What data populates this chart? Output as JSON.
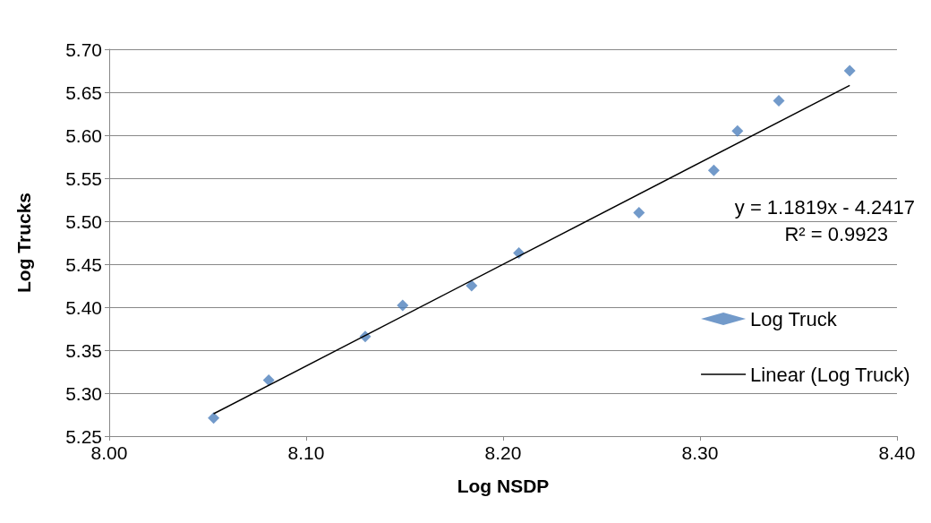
{
  "chart_data": {
    "type": "scatter",
    "xlabel": "Log NSDP",
    "ylabel": "Log Trucks",
    "xlim": [
      8.0,
      8.4
    ],
    "ylim": [
      5.25,
      5.7
    ],
    "xticks": [
      {
        "value": 8.0,
        "label": "8.00"
      },
      {
        "value": 8.1,
        "label": "8.10"
      },
      {
        "value": 8.2,
        "label": "8.20"
      },
      {
        "value": 8.3,
        "label": "8.30"
      },
      {
        "value": 8.4,
        "label": "8.40"
      }
    ],
    "yticks": [
      {
        "value": 5.25,
        "label": "5.25"
      },
      {
        "value": 5.3,
        "label": "5.30"
      },
      {
        "value": 5.35,
        "label": "5.35"
      },
      {
        "value": 5.4,
        "label": "5.40"
      },
      {
        "value": 5.45,
        "label": "5.45"
      },
      {
        "value": 5.5,
        "label": "5.50"
      },
      {
        "value": 5.55,
        "label": "5.55"
      },
      {
        "value": 5.6,
        "label": "5.60"
      },
      {
        "value": 5.65,
        "label": "5.65"
      },
      {
        "value": 5.7,
        "label": "5.70"
      }
    ],
    "grid": "y",
    "legend": "right",
    "series": [
      {
        "name": "Log Truck",
        "marker": "diamond",
        "color": "#4f81bd",
        "x": [
          8.053,
          8.081,
          8.13,
          8.149,
          8.184,
          8.208,
          8.269,
          8.307,
          8.319,
          8.34,
          8.376
        ],
        "values": [
          5.271,
          5.315,
          5.366,
          5.402,
          5.425,
          5.463,
          5.51,
          5.559,
          5.605,
          5.64,
          5.675
        ]
      },
      {
        "name": "Linear (Log Truck)",
        "type": "line",
        "marker": "none",
        "line_style": "solid",
        "color": "#000000",
        "x": [
          8.053,
          8.376
        ],
        "values": [
          5.276,
          5.658
        ]
      }
    ],
    "annotations": [
      "y = 1.1819x - 4.2417",
      "R² = 0.9923"
    ]
  }
}
